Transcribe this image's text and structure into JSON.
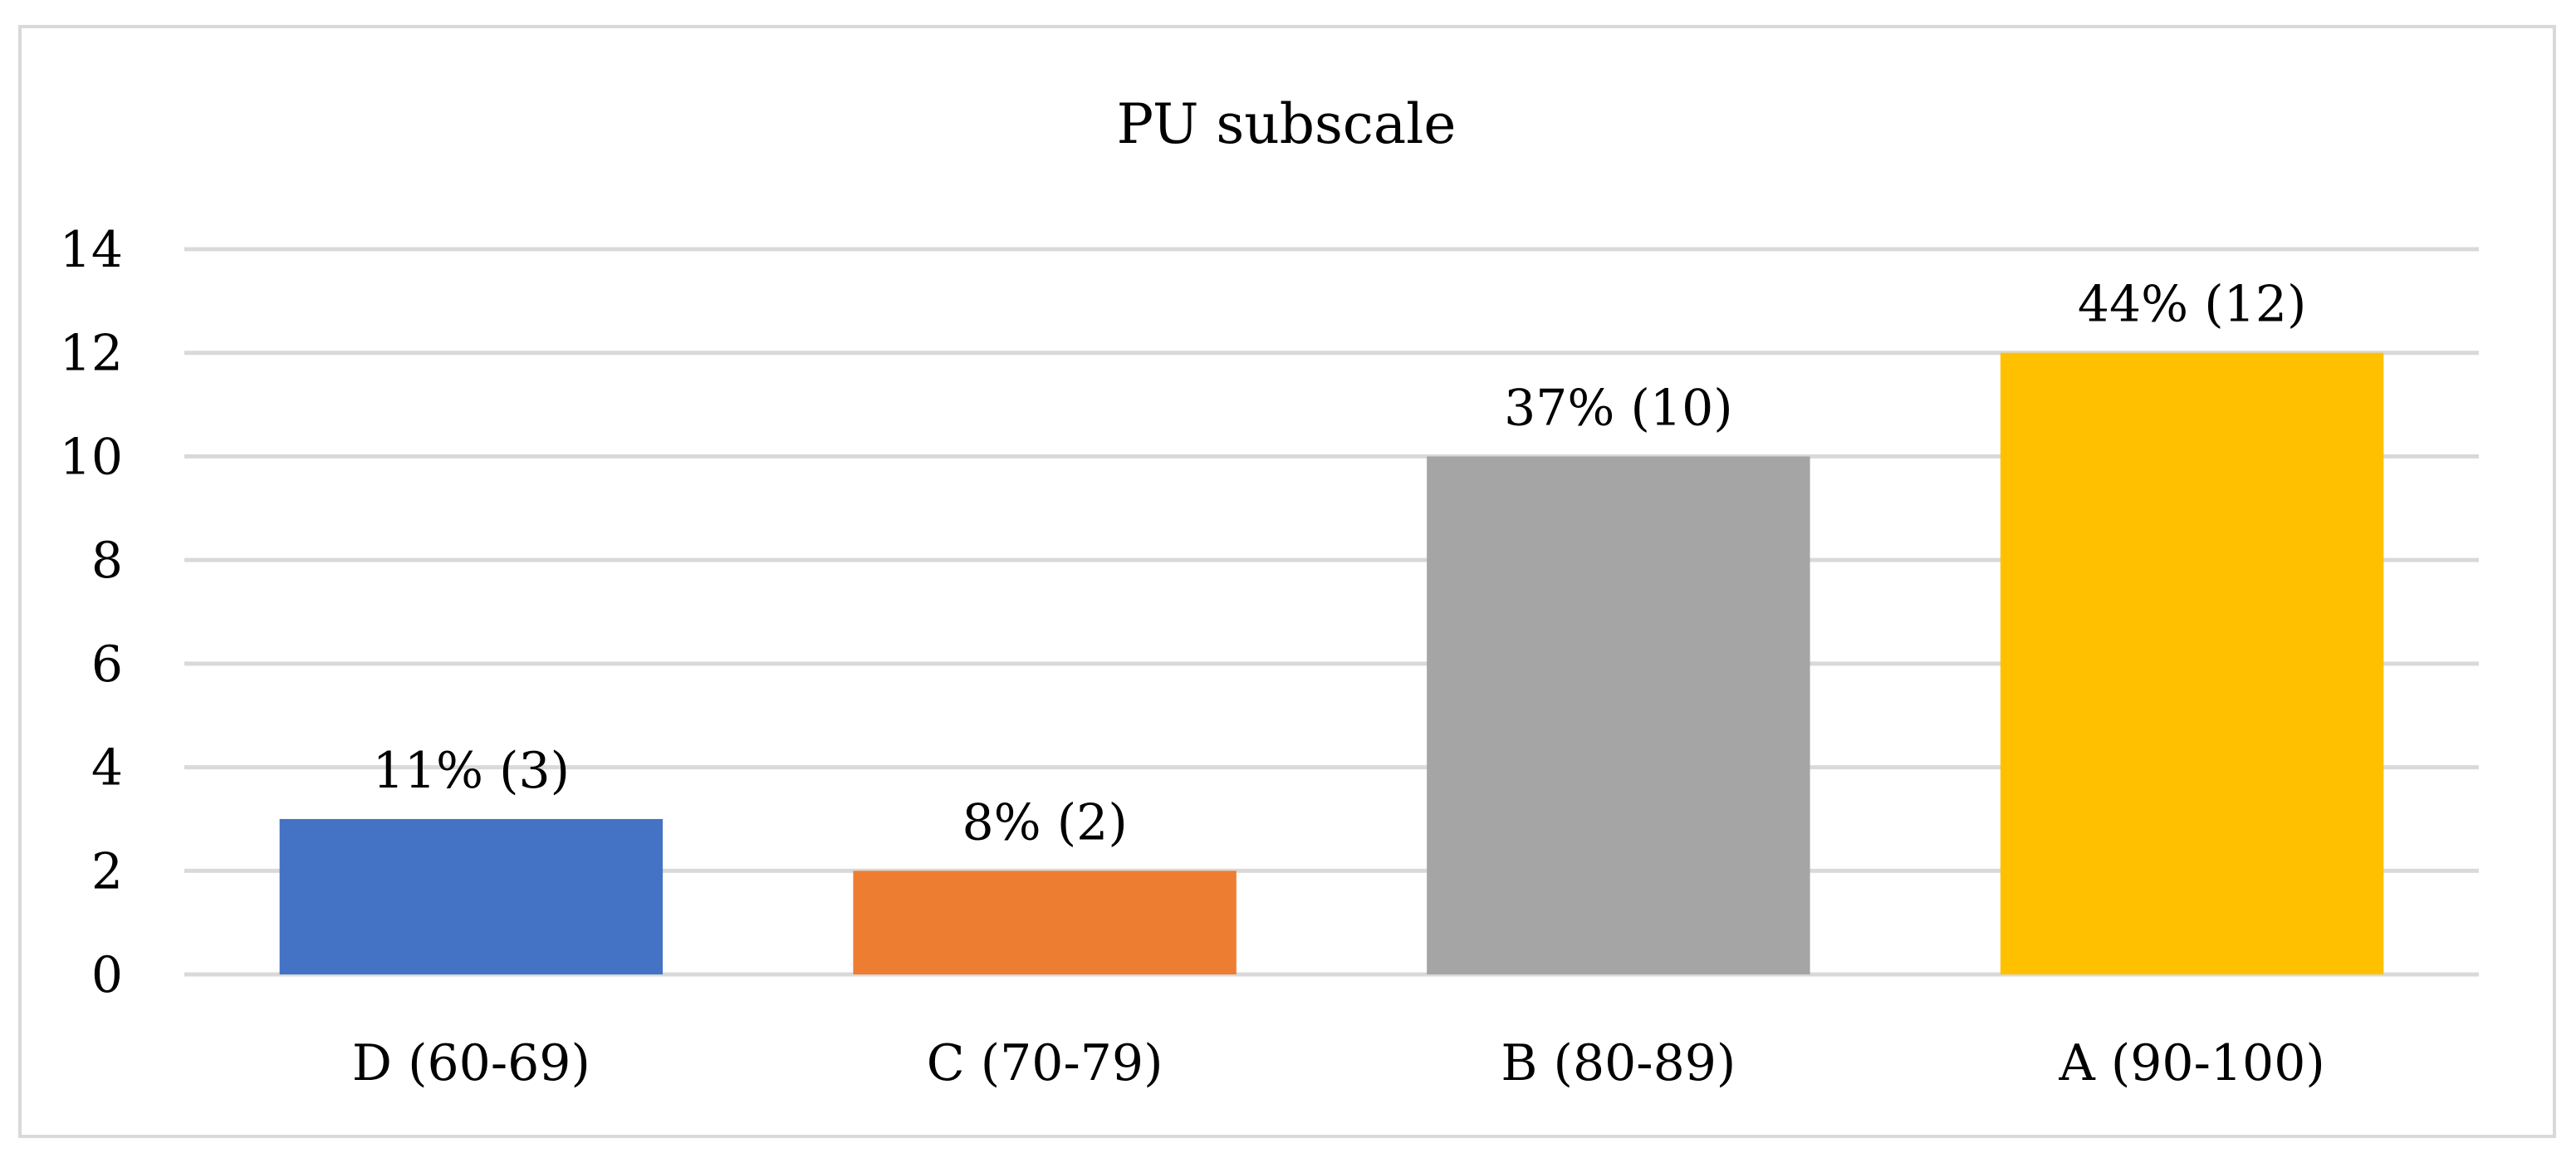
{
  "chart_data": {
    "type": "bar",
    "title": "PU subscale",
    "xlabel": "",
    "ylabel": "",
    "categories": [
      "D (60-69)",
      "C (70-79)",
      "B (80-89)",
      "A (90-100)"
    ],
    "values": [
      3,
      2,
      10,
      12
    ],
    "data_labels": [
      "11% (3)",
      "8% (2)",
      "37% (10)",
      "44% (12)"
    ],
    "colors": [
      "#4472c4",
      "#ed7d31",
      "#a5a5a5",
      "#ffc000"
    ],
    "ylim": [
      0,
      14
    ],
    "yticks": [
      0,
      2,
      4,
      6,
      8,
      10,
      12,
      14
    ],
    "grid": true,
    "legend": "none"
  }
}
